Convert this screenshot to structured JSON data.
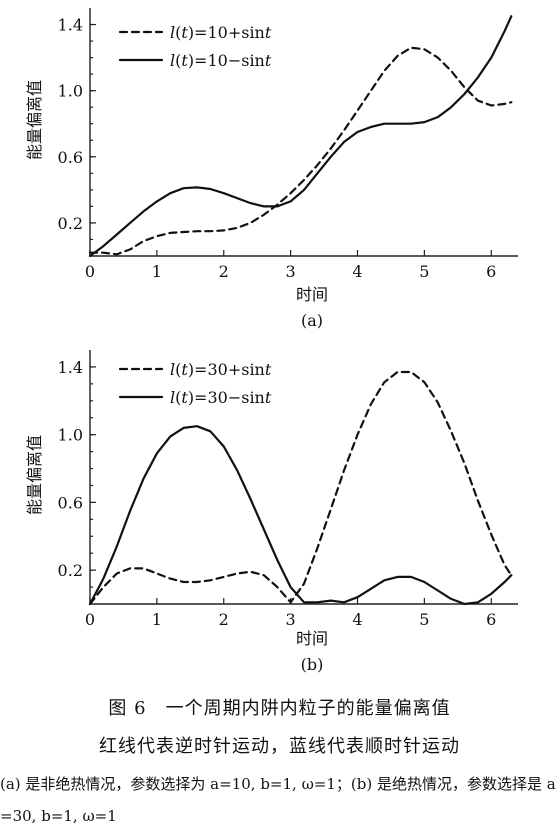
{
  "chart_data": [
    {
      "type": "line",
      "panel_label": "(a)",
      "xlabel": "时间",
      "ylabel": "能量偏离值",
      "xlim": [
        0,
        6.4
      ],
      "ylim": [
        0,
        1.5
      ],
      "xticks": [
        "0",
        "1",
        "2",
        "3",
        "4",
        "5",
        "6"
      ],
      "yticks": [
        "0.2",
        "0.6",
        "1.0",
        "1.4"
      ],
      "legend_position": "top-left",
      "series": [
        {
          "name": "l(t)=10+sin t",
          "legend_parts": [
            "l",
            "(",
            "t",
            ")=10+sin",
            "t"
          ],
          "style": "dashed",
          "x": [
            0,
            0.2,
            0.4,
            0.6,
            0.8,
            1.0,
            1.2,
            1.4,
            1.6,
            1.8,
            2.0,
            2.2,
            2.4,
            2.6,
            2.8,
            3.0,
            3.2,
            3.4,
            3.6,
            3.8,
            4.0,
            4.2,
            4.4,
            4.6,
            4.8,
            5.0,
            5.2,
            5.4,
            5.6,
            5.8,
            6.0,
            6.2,
            6.3
          ],
          "y": [
            0.02,
            0.02,
            0.01,
            0.04,
            0.09,
            0.12,
            0.14,
            0.145,
            0.15,
            0.15,
            0.155,
            0.17,
            0.2,
            0.25,
            0.31,
            0.38,
            0.46,
            0.55,
            0.65,
            0.76,
            0.88,
            1.0,
            1.12,
            1.21,
            1.26,
            1.25,
            1.2,
            1.12,
            1.02,
            0.94,
            0.91,
            0.92,
            0.93
          ]
        },
        {
          "name": "l(t)=10−sin t",
          "legend_parts": [
            "l",
            "(",
            "t",
            ")=10−sin",
            "t"
          ],
          "style": "solid",
          "x": [
            0,
            0.2,
            0.4,
            0.6,
            0.8,
            1.0,
            1.2,
            1.4,
            1.6,
            1.8,
            2.0,
            2.2,
            2.4,
            2.6,
            2.8,
            3.0,
            3.2,
            3.4,
            3.6,
            3.8,
            4.0,
            4.2,
            4.4,
            4.6,
            4.8,
            5.0,
            5.2,
            5.4,
            5.6,
            5.8,
            6.0,
            6.2,
            6.3
          ],
          "y": [
            0.0,
            0.06,
            0.13,
            0.2,
            0.27,
            0.33,
            0.38,
            0.41,
            0.415,
            0.405,
            0.38,
            0.35,
            0.32,
            0.3,
            0.3,
            0.33,
            0.4,
            0.5,
            0.6,
            0.69,
            0.75,
            0.78,
            0.8,
            0.8,
            0.8,
            0.81,
            0.84,
            0.9,
            0.98,
            1.08,
            1.2,
            1.36,
            1.45
          ]
        }
      ]
    },
    {
      "type": "line",
      "panel_label": "(b)",
      "xlabel": "时间",
      "ylabel": "能量偏离值",
      "xlim": [
        0,
        6.4
      ],
      "ylim": [
        0,
        1.5
      ],
      "xticks": [
        "0",
        "1",
        "2",
        "3",
        "4",
        "5",
        "6"
      ],
      "yticks": [
        "0.2",
        "0.6",
        "1.0",
        "1.4"
      ],
      "legend_position": "top-left",
      "series": [
        {
          "name": "l(t)=30+sin t",
          "legend_parts": [
            "l",
            "(",
            "t",
            ")=30+sin",
            "t"
          ],
          "style": "dashed",
          "x": [
            0,
            0.2,
            0.4,
            0.6,
            0.8,
            1.0,
            1.2,
            1.4,
            1.6,
            1.8,
            2.0,
            2.2,
            2.4,
            2.6,
            2.8,
            3.0,
            3.2,
            3.4,
            3.6,
            3.8,
            4.0,
            4.2,
            4.4,
            4.6,
            4.8,
            5.0,
            5.2,
            5.4,
            5.6,
            5.8,
            6.0,
            6.2,
            6.3
          ],
          "y": [
            0.0,
            0.1,
            0.18,
            0.21,
            0.21,
            0.18,
            0.15,
            0.13,
            0.13,
            0.14,
            0.16,
            0.18,
            0.19,
            0.17,
            0.1,
            0.01,
            0.12,
            0.33,
            0.56,
            0.79,
            1.0,
            1.18,
            1.31,
            1.37,
            1.37,
            1.31,
            1.19,
            1.02,
            0.83,
            0.61,
            0.41,
            0.23,
            0.17
          ]
        },
        {
          "name": "l(t)=30−sin t",
          "legend_parts": [
            "l",
            "(",
            "t",
            ")=30−sin",
            "t"
          ],
          "style": "solid",
          "x": [
            0,
            0.2,
            0.4,
            0.6,
            0.8,
            1.0,
            1.2,
            1.4,
            1.6,
            1.8,
            2.0,
            2.2,
            2.4,
            2.6,
            2.8,
            3.0,
            3.2,
            3.4,
            3.6,
            3.8,
            4.0,
            4.2,
            4.4,
            4.6,
            4.8,
            5.0,
            5.2,
            5.4,
            5.6,
            5.8,
            6.0,
            6.2,
            6.3
          ],
          "y": [
            0.0,
            0.15,
            0.34,
            0.55,
            0.74,
            0.89,
            0.99,
            1.04,
            1.05,
            1.02,
            0.93,
            0.79,
            0.62,
            0.44,
            0.26,
            0.1,
            0.01,
            0.01,
            0.02,
            0.01,
            0.04,
            0.09,
            0.14,
            0.16,
            0.16,
            0.13,
            0.08,
            0.03,
            0.0,
            0.01,
            0.06,
            0.13,
            0.17
          ]
        }
      ]
    }
  ],
  "caption": {
    "title": "图 6　一个周期内阱内粒子的能量偏离值",
    "subtitle": "红线代表逆时针运动，蓝线代表顺时针运动",
    "note": "(a) 是非绝热情况，参数选择为 a=10, b=1, ω=1；(b) 是绝热情况，参数选择是 a=30, b=1, ω=1"
  }
}
